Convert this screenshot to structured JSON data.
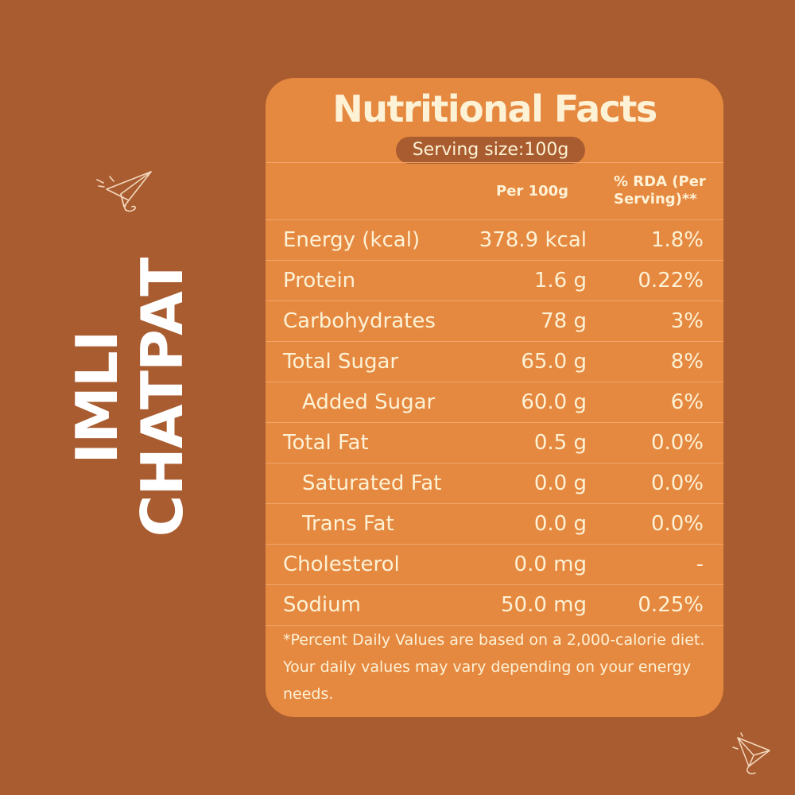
{
  "product": {
    "line1": "IMLI",
    "line2": "CHATPAT"
  },
  "icons": {
    "top": "paper-plane-icon",
    "bottom": "paper-plane-icon"
  },
  "colors": {
    "background": "#a95c30",
    "card": "#e58840",
    "text": "#fdf2d5",
    "divider": "#f2a56a"
  },
  "card": {
    "title": "Nutritional Facts",
    "serving": "Serving size:100g",
    "col_per": "Per 100g",
    "col_rda": "% RDA (Per Serving)**",
    "rows": [
      {
        "name": "Energy (kcal)",
        "per": "378.9 kcal",
        "rda": "1.8%"
      },
      {
        "name": "Protein",
        "per": "1.6 g",
        "rda": "0.22%"
      },
      {
        "name": "Carbohydrates",
        "per": "78 g",
        "rda": "3%"
      },
      {
        "name": "Total Sugar",
        "per": "65.0 g",
        "rda": "8%"
      },
      {
        "name": "Added Sugar",
        "per": "60.0 g",
        "rda": "6%"
      },
      {
        "name": "Total Fat",
        "per": "0.5 g",
        "rda": "0.0%"
      },
      {
        "name": "Saturated Fat",
        "per": "0.0 g",
        "rda": "0.0%"
      },
      {
        "name": "Trans Fat",
        "per": "0.0 g",
        "rda": "0.0%"
      },
      {
        "name": "Cholesterol",
        "per": "0.0 mg",
        "rda": "-"
      },
      {
        "name": "Sodium",
        "per": "50.0 mg",
        "rda": "0.25%"
      }
    ],
    "footnote": "*Percent Daily Values are based on a 2,000-calorie diet. Your daily values may vary depending on your energy needs."
  }
}
